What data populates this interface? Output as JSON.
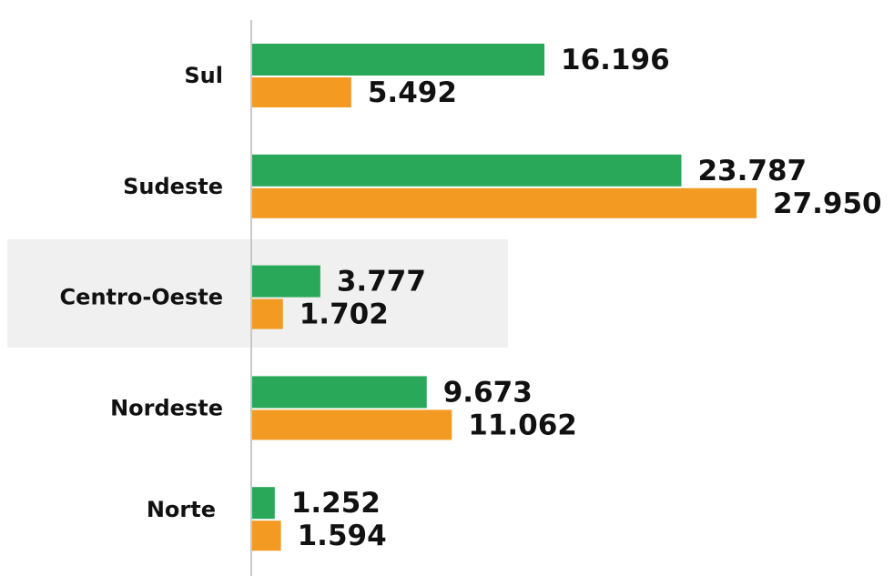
{
  "chart_data": {
    "type": "bar",
    "orientation": "horizontal",
    "categories": [
      "Sul",
      "Sudeste",
      "Centro-Oeste",
      "Nordeste",
      "Norte"
    ],
    "series": [
      {
        "color": "#2aa85a",
        "values": [
          16196,
          23787,
          3777,
          9673,
          1252
        ],
        "value_labels": [
          "16.196",
          "23.787",
          "3.777",
          "9.673",
          "1.252"
        ]
      },
      {
        "color": "#f39a22",
        "values": [
          5492,
          27950,
          1702,
          11062,
          1594
        ],
        "value_labels": [
          "5.492",
          "27.950",
          "1.702",
          "11.062",
          "1.594"
        ]
      }
    ]
  }
}
